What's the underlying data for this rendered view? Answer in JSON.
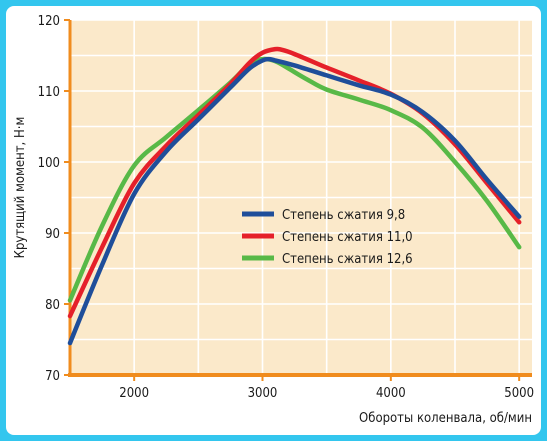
{
  "chart_data": {
    "type": "line",
    "title": "",
    "xlabel": "Обороты коленвала, об/мин",
    "ylabel": "Крутящий момент, Н·м",
    "xlim": [
      1500,
      5100
    ],
    "ylim": [
      70,
      120
    ],
    "xticks": [
      2000,
      3000,
      4000,
      5000
    ],
    "yticks": [
      70,
      80,
      90,
      100,
      110,
      120
    ],
    "grid": true,
    "legend_position": "center-right",
    "colors": {
      "plot_background": "#fbe9ca",
      "grid": "#ffffff",
      "axis": "#f08c1e",
      "frame": "#33c6ee"
    },
    "series": [
      {
        "name": "Степень сжатия 9,8",
        "color": "#1f4e9a",
        "x": [
          1500,
          1750,
          2000,
          2250,
          2500,
          2750,
          2900,
          3000,
          3050,
          3100,
          3250,
          3500,
          3750,
          4000,
          4250,
          4500,
          4750,
          5000
        ],
        "y": [
          74.5,
          85.5,
          95.5,
          101.5,
          106,
          110.5,
          113.2,
          114.3,
          114.5,
          114.3,
          113.6,
          112.2,
          110.8,
          109.5,
          107,
          103,
          97.5,
          92.3
        ]
      },
      {
        "name": "Степень сжатия 11,0",
        "color": "#e5202a",
        "x": [
          1500,
          1750,
          2000,
          2250,
          2500,
          2750,
          2900,
          3000,
          3100,
          3150,
          3250,
          3500,
          3750,
          4000,
          4250,
          4500,
          4750,
          5000
        ],
        "y": [
          78.3,
          88,
          97,
          102.3,
          106.6,
          111,
          114,
          115.4,
          115.9,
          115.8,
          115.2,
          113.3,
          111.5,
          109.6,
          106.8,
          102.5,
          97,
          91.5
        ]
      },
      {
        "name": "Степень сжатия 12,6",
        "color": "#58b947",
        "x": [
          1500,
          1750,
          2000,
          2250,
          2500,
          2750,
          2900,
          3000,
          3100,
          3200,
          3350,
          3500,
          3750,
          4000,
          4250,
          4500,
          4750,
          5000
        ],
        "y": [
          80.5,
          91,
          99.5,
          103.5,
          107.3,
          111.2,
          113.8,
          114.5,
          114.2,
          113.2,
          111.6,
          110.2,
          108.8,
          107.3,
          104.8,
          100,
          94.5,
          88
        ]
      }
    ]
  }
}
